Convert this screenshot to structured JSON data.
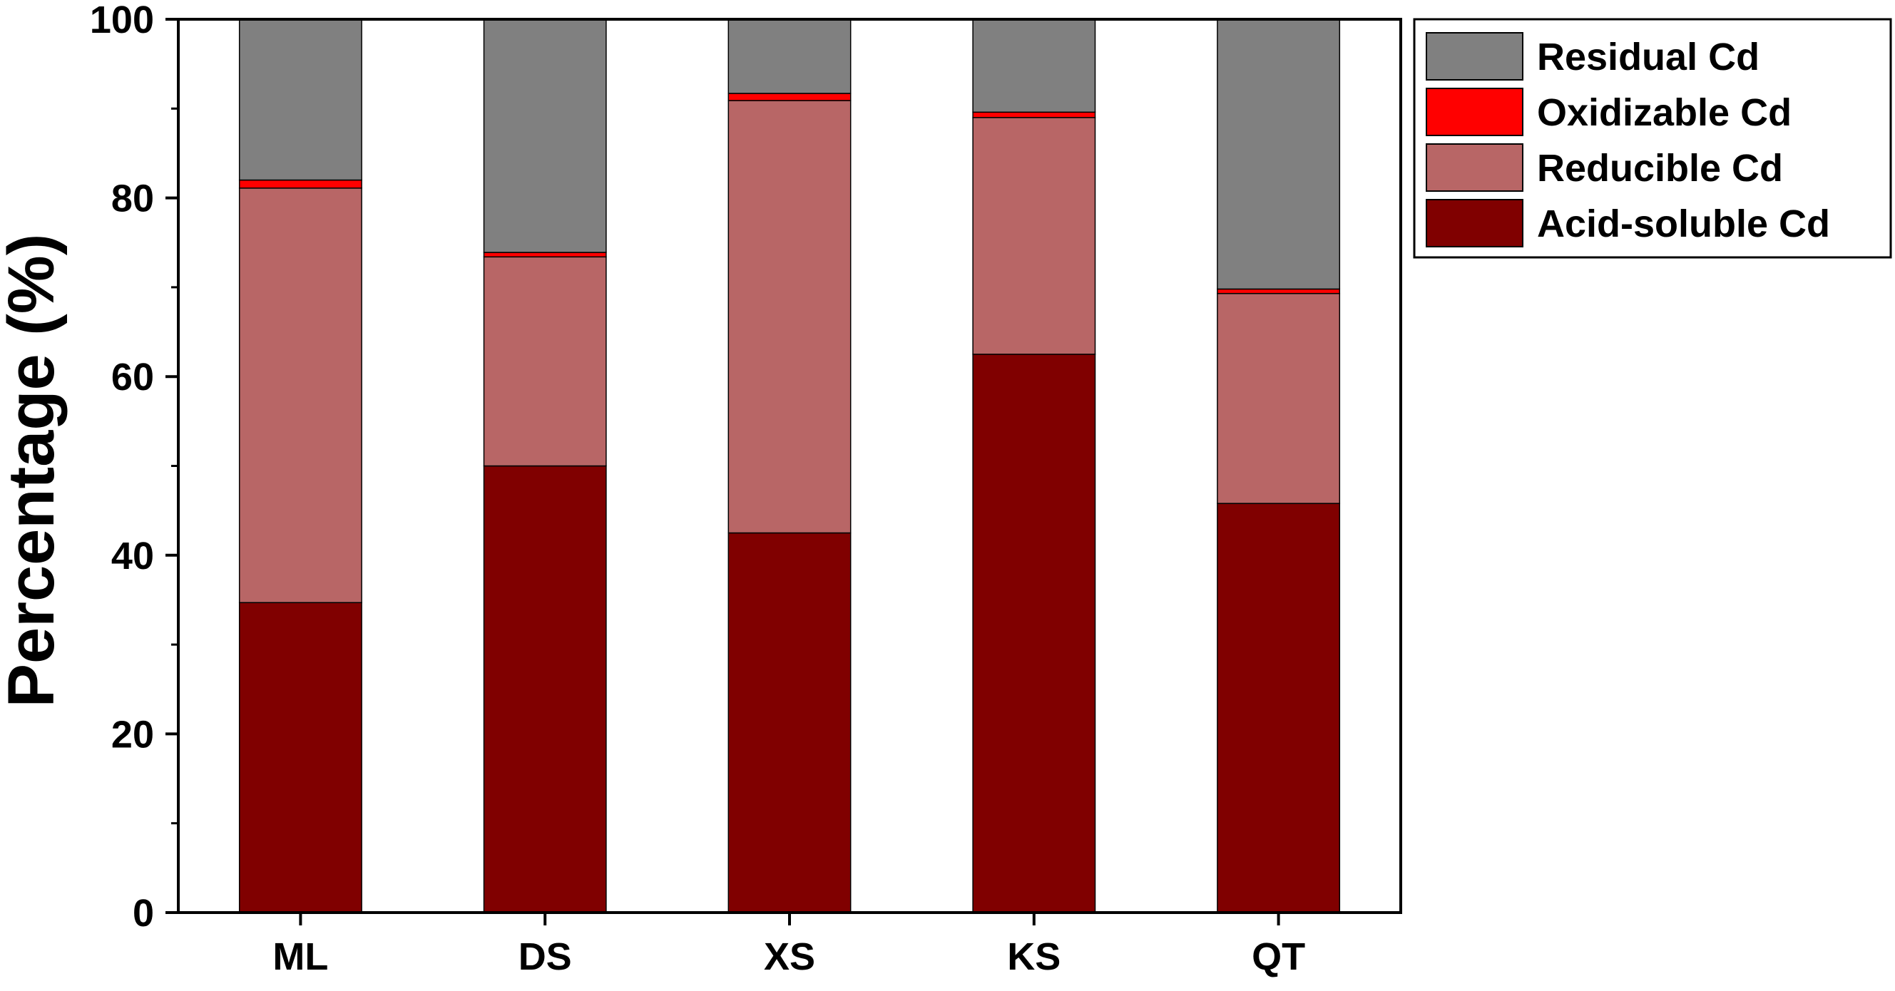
{
  "chart_data": {
    "type": "bar",
    "stacked": true,
    "title": "",
    "xlabel": "",
    "ylabel": "Percentage (%)",
    "ylim": [
      0,
      100
    ],
    "yticks": [
      "0",
      "20",
      "40",
      "60",
      "80",
      "100"
    ],
    "categories": [
      "ML",
      "DS",
      "XS",
      "KS",
      "QT"
    ],
    "grid": false,
    "legend_position": "top-right",
    "series": [
      {
        "name": "Acid-soluble Cd",
        "color": "#800000",
        "values": [
          34.7,
          50.0,
          42.5,
          62.5,
          45.8
        ]
      },
      {
        "name": "Reducible Cd",
        "color": "#B86666",
        "values": [
          46.4,
          23.4,
          48.4,
          26.5,
          23.5
        ]
      },
      {
        "name": "Oxidizable Cd",
        "color": "#FF0000",
        "values": [
          0.9,
          0.5,
          0.8,
          0.6,
          0.5
        ]
      },
      {
        "name": "Residual Cd",
        "color": "#808080",
        "values": [
          18.0,
          26.1,
          8.3,
          10.4,
          30.2
        ]
      }
    ]
  }
}
